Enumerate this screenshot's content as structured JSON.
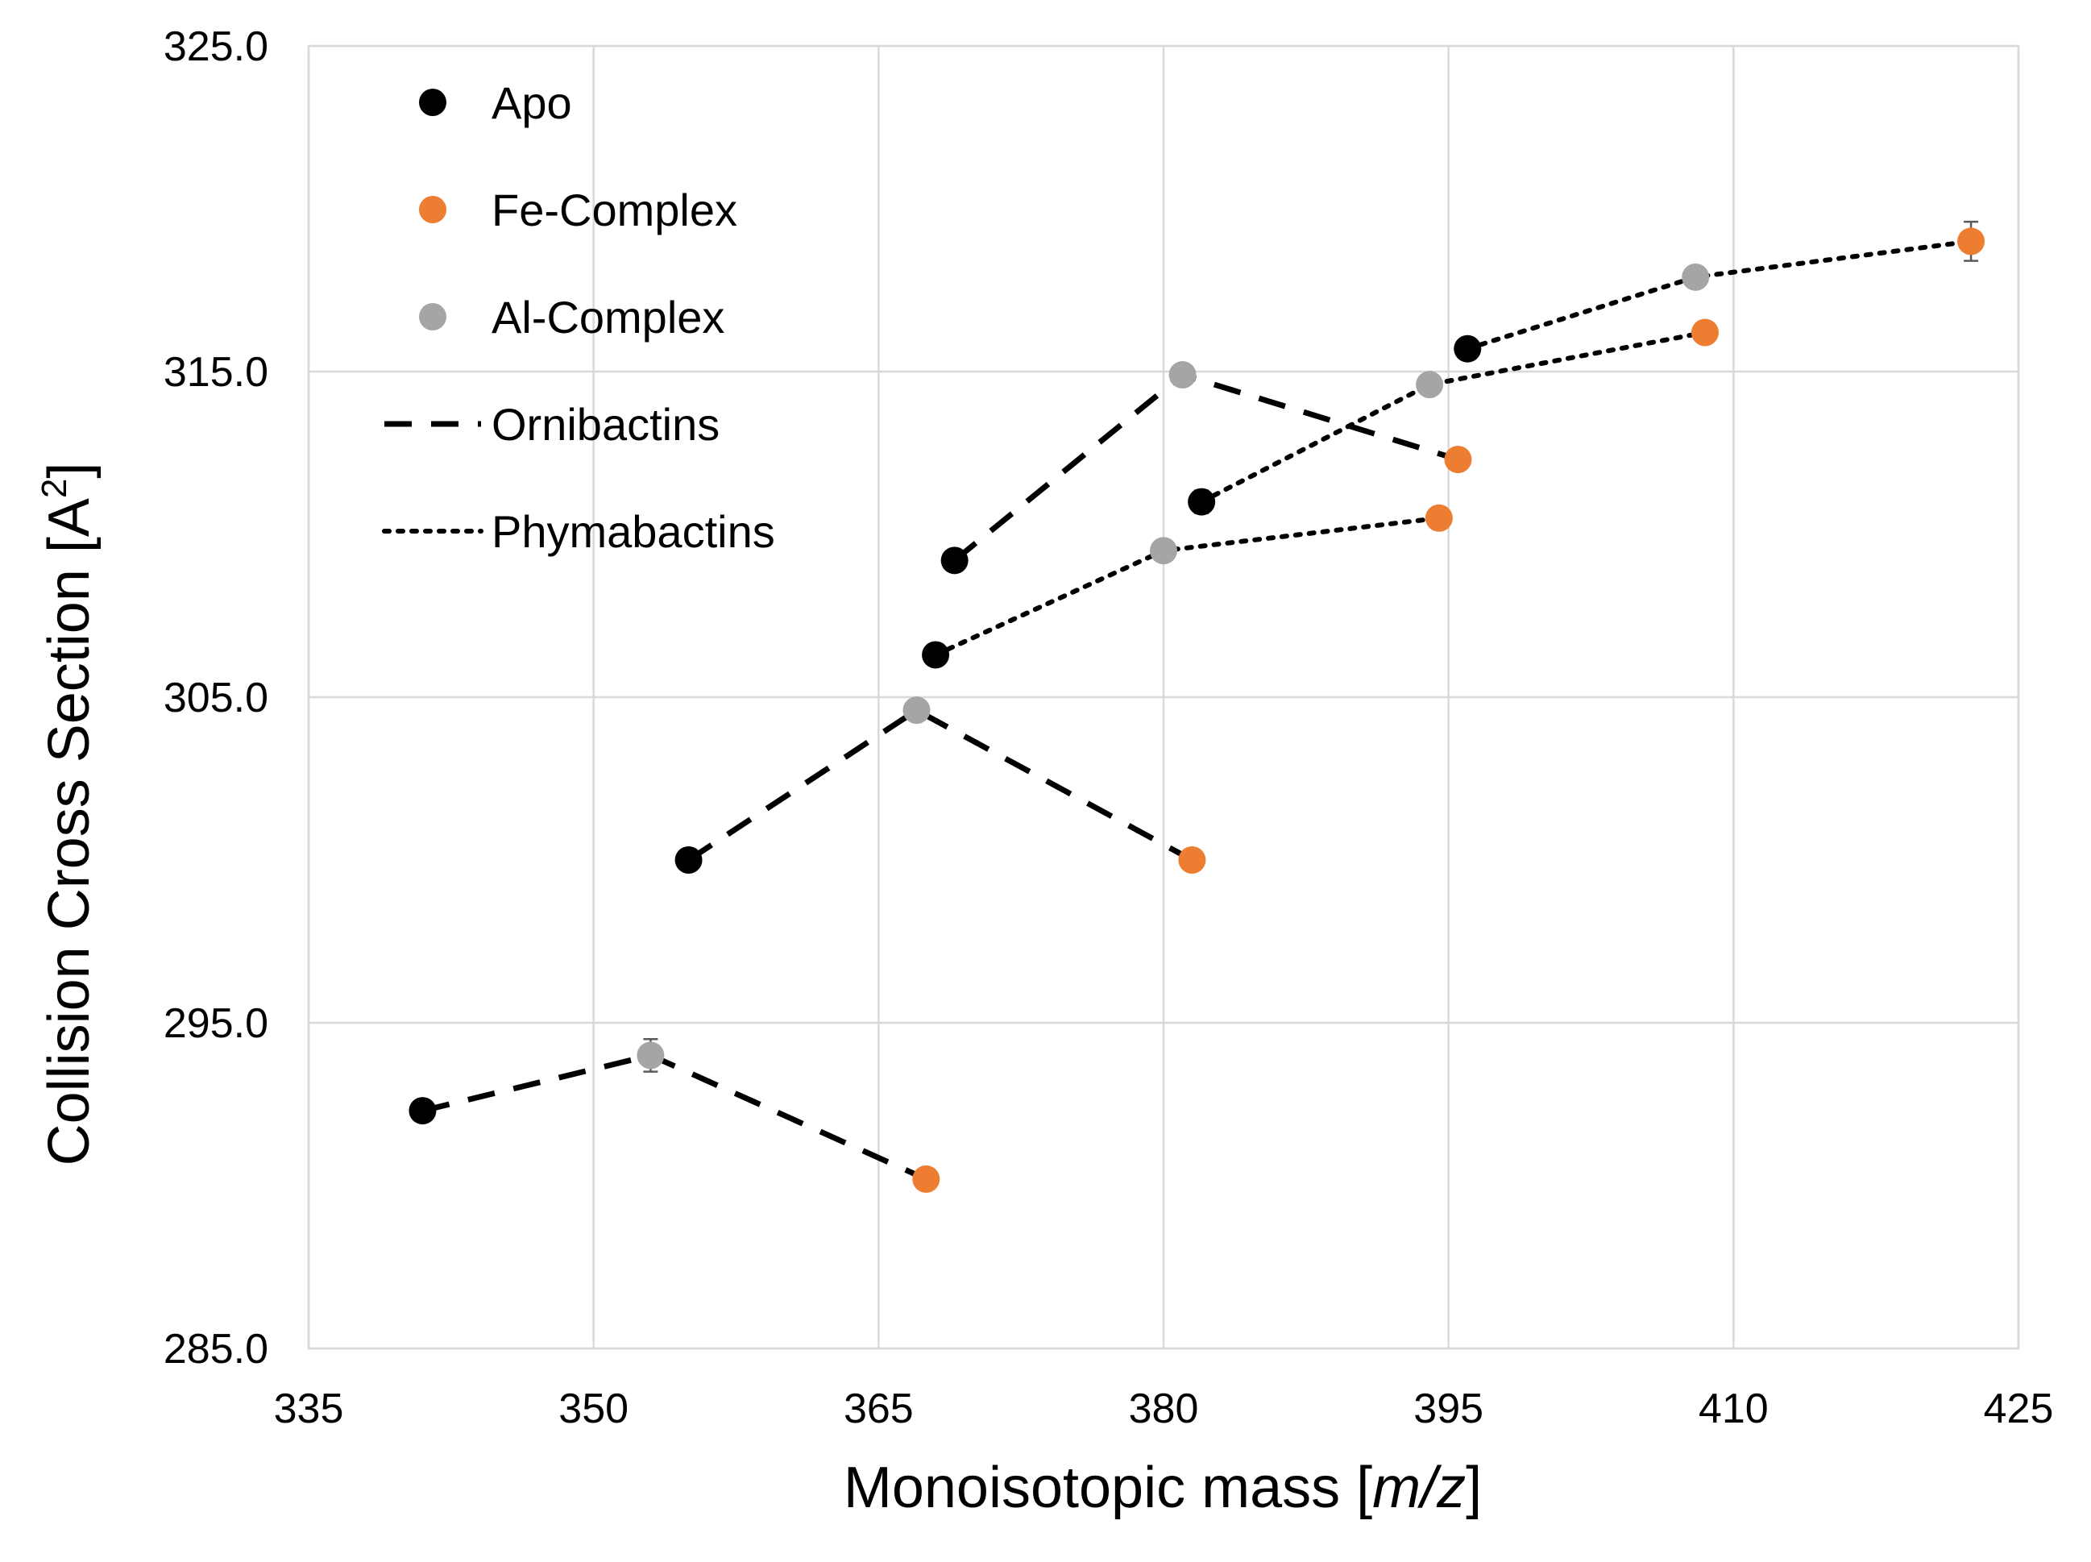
{
  "chart_data": {
    "type": "scatter",
    "xlabel_prefix": "Monoisotopic mass [",
    "xlabel_italic": "m/z",
    "xlabel_suffix": "]",
    "ylabel_main": "Collision Cross Section [A",
    "ylabel_sup": "2",
    "ylabel_end": "]",
    "xlim": [
      335,
      425
    ],
    "ylim": [
      285,
      325
    ],
    "x_ticks": [
      335,
      350,
      365,
      380,
      395,
      410,
      425
    ],
    "x_tick_labels": [
      "335",
      "350",
      "365",
      "380",
      "395",
      "410",
      "425"
    ],
    "y_ticks": [
      285,
      295,
      305,
      315,
      325
    ],
    "y_tick_labels": [
      "285.0",
      "295.0",
      "305.0",
      "315.0",
      "325.0"
    ],
    "grid": true,
    "legend_position": "top-left",
    "marker_series": [
      {
        "name": "Apo",
        "color": "#000000"
      },
      {
        "name": "Fe-Complex",
        "color": "#ed7d31"
      },
      {
        "name": "Al-Complex",
        "color": "#a5a5a5"
      }
    ],
    "line_series": [
      {
        "name": "Ornibactins",
        "style": "dashed"
      },
      {
        "name": "Phymabactins",
        "style": "dotted"
      }
    ],
    "groups": [
      {
        "line": "dashed",
        "points": [
          {
            "x": 341.0,
            "y": 292.3,
            "kind": "Apo"
          },
          {
            "x": 353.0,
            "y": 294.0,
            "kind": "Al-Complex",
            "err": 0.5
          },
          {
            "x": 367.5,
            "y": 290.2,
            "kind": "Fe-Complex"
          }
        ]
      },
      {
        "line": "dashed",
        "points": [
          {
            "x": 355.0,
            "y": 300.0,
            "kind": "Apo"
          },
          {
            "x": 367.0,
            "y": 304.6,
            "kind": "Al-Complex"
          },
          {
            "x": 381.5,
            "y": 300.0,
            "kind": "Fe-Complex"
          }
        ]
      },
      {
        "line": "dashed",
        "points": [
          {
            "x": 369.0,
            "y": 309.2,
            "kind": "Apo"
          },
          {
            "x": 381.0,
            "y": 314.9,
            "kind": "Al-Complex"
          },
          {
            "x": 395.5,
            "y": 312.3,
            "kind": "Fe-Complex"
          }
        ]
      },
      {
        "line": "dotted",
        "points": [
          {
            "x": 368.0,
            "y": 306.3,
            "kind": "Apo"
          },
          {
            "x": 380.0,
            "y": 309.5,
            "kind": "Al-Complex"
          },
          {
            "x": 394.5,
            "y": 310.5,
            "kind": "Fe-Complex"
          }
        ]
      },
      {
        "line": "dotted",
        "points": [
          {
            "x": 382.0,
            "y": 311.0,
            "kind": "Apo",
            "err": 0.35
          },
          {
            "x": 394.0,
            "y": 314.6,
            "kind": "Al-Complex"
          },
          {
            "x": 408.5,
            "y": 316.2,
            "kind": "Fe-Complex"
          }
        ]
      },
      {
        "line": "dotted",
        "points": [
          {
            "x": 396.0,
            "y": 315.7,
            "kind": "Apo"
          },
          {
            "x": 408.0,
            "y": 317.9,
            "kind": "Al-Complex",
            "err": 0.3
          },
          {
            "x": 422.5,
            "y": 319.0,
            "kind": "Fe-Complex",
            "err": 0.6
          }
        ]
      }
    ]
  }
}
